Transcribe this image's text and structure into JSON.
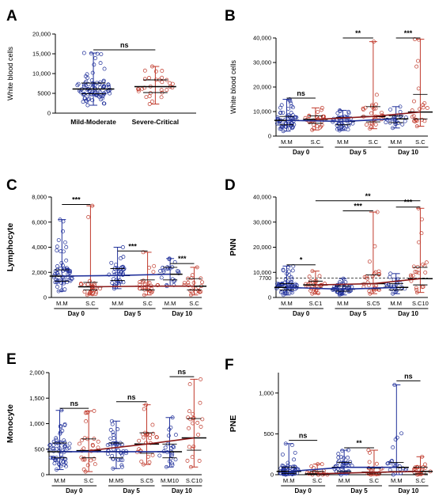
{
  "colors": {
    "mild_moderate": "#1f2f9a",
    "severe_critical": "#c0392b",
    "trend_severe": "#8b1a1a",
    "reference_line": "#333333"
  },
  "chart_data": [
    {
      "id": "A",
      "panel_label": "A",
      "type": "scatter",
      "ylabel": "White blood cells",
      "ylim": [
        0,
        20000
      ],
      "yticks": [
        0,
        5000,
        10000,
        15000,
        20000
      ],
      "ytick_labels": [
        "0",
        "5000",
        "10,000",
        "15,000",
        "20,000"
      ],
      "groups": [
        {
          "label": "Mild-Moderate",
          "color": "#1f2f9a",
          "n": 90,
          "median": 6100,
          "q1": 4900,
          "q3": 7600,
          "min": 2000,
          "max": 15200
        },
        {
          "label": "Severe-Critical",
          "color": "#c0392b",
          "n": 30,
          "median": 6700,
          "q1": 5200,
          "q3": 8400,
          "min": 2300,
          "max": 11800
        }
      ],
      "comparisons": [
        {
          "from": 0,
          "to": 1,
          "label": "ns",
          "y": 16000
        }
      ]
    },
    {
      "id": "B",
      "panel_label": "B",
      "type": "scatter",
      "ylabel": "White blood cells",
      "ylim": [
        0,
        40000
      ],
      "yticks": [
        0,
        10000,
        20000,
        30000,
        40000
      ],
      "ytick_labels": [
        "0",
        "10,000",
        "20,000",
        "30,000",
        "40,000"
      ],
      "days": [
        "Day 0",
        "Day 5",
        "Day 10"
      ],
      "groups": [
        {
          "label": "M.M",
          "day": 0,
          "color": "#1f2f9a",
          "n": 60,
          "median": 6400,
          "q1": 4600,
          "q3": 8000,
          "min": 2000,
          "max": 15000
        },
        {
          "label": "S.C",
          "day": 0,
          "color": "#c0392b",
          "n": 28,
          "median": 6800,
          "q1": 5200,
          "q3": 8200,
          "min": 2500,
          "max": 11500
        },
        {
          "label": "M.M",
          "day": 1,
          "color": "#1f2f9a",
          "n": 40,
          "median": 6000,
          "q1": 4600,
          "q3": 7600,
          "min": 2300,
          "max": 10500
        },
        {
          "label": "S.C",
          "day": 1,
          "color": "#c0392b",
          "n": 26,
          "median": 8000,
          "q1": 5800,
          "q3": 12000,
          "min": 3000,
          "max": 38500
        },
        {
          "label": "M.M",
          "day": 2,
          "color": "#1f2f9a",
          "n": 22,
          "median": 7000,
          "q1": 5500,
          "q3": 8200,
          "min": 3300,
          "max": 12000
        },
        {
          "label": "S.C",
          "day": 2,
          "color": "#c0392b",
          "n": 22,
          "median": 9800,
          "q1": 7000,
          "q3": 17000,
          "min": 4000,
          "max": 39500
        }
      ],
      "trend": {
        "mild_moderate": [
          6400,
          6000,
          7000
        ],
        "severe_critical": [
          6800,
          8000,
          9800
        ]
      },
      "comparisons": [
        {
          "from": 0,
          "to": 1,
          "label": "ns",
          "y": 15500
        },
        {
          "from": 2,
          "to": 3,
          "label": "**",
          "y": 40000
        },
        {
          "from": 4,
          "to": 5,
          "label": "***",
          "y": 40000
        }
      ]
    },
    {
      "id": "C",
      "panel_label": "C",
      "type": "scatter",
      "ylabel": "Lymphocyte",
      "ylim": [
        0,
        8000
      ],
      "yticks": [
        0,
        2000,
        4000,
        6000,
        8000
      ],
      "ytick_labels": [
        "0",
        "2,000",
        "4,000",
        "6,000",
        "8,000"
      ],
      "days": [
        "Day 0",
        "Day 5",
        "Day 10"
      ],
      "groups": [
        {
          "label": "M.M",
          "day": 0,
          "color": "#1f2f9a",
          "n": 60,
          "median": 1700,
          "q1": 1300,
          "q3": 2200,
          "min": 500,
          "max": 6200
        },
        {
          "label": "S.C",
          "day": 0,
          "color": "#c0392b",
          "n": 28,
          "median": 850,
          "q1": 600,
          "q3": 1200,
          "min": 200,
          "max": 7300
        },
        {
          "label": "M.M",
          "day": 1,
          "color": "#1f2f9a",
          "n": 40,
          "median": 1750,
          "q1": 1350,
          "q3": 2300,
          "min": 700,
          "max": 4000
        },
        {
          "label": "S.C",
          "day": 1,
          "color": "#c0392b",
          "n": 26,
          "median": 900,
          "q1": 600,
          "q3": 1400,
          "min": 200,
          "max": 3600
        },
        {
          "label": "M.M",
          "day": 2,
          "color": "#1f2f9a",
          "n": 22,
          "median": 1850,
          "q1": 1400,
          "q3": 2400,
          "min": 900,
          "max": 3100
        },
        {
          "label": "S.C",
          "day": 2,
          "color": "#c0392b",
          "n": 22,
          "median": 900,
          "q1": 600,
          "q3": 1500,
          "min": 200,
          "max": 2400
        }
      ],
      "trend": {
        "mild_moderate": [
          1700,
          1750,
          1850
        ],
        "severe_critical": [
          850,
          900,
          900
        ]
      },
      "comparisons": [
        {
          "from": 0,
          "to": 1,
          "label": "***",
          "y": 7400
        },
        {
          "from": 2,
          "to": 3,
          "label": "***",
          "y": 3700
        },
        {
          "from": 4,
          "to": 5,
          "label": "***",
          "y": 2700
        }
      ]
    },
    {
      "id": "D",
      "panel_label": "D",
      "type": "scatter",
      "ylabel": "PNN",
      "ylim": [
        0,
        40000
      ],
      "yticks": [
        0,
        10000,
        20000,
        30000,
        40000
      ],
      "ytick_labels": [
        "0",
        "10,000",
        "20,000",
        "30,000",
        "40,000"
      ],
      "reference_line": {
        "value": 7700,
        "label": "7700"
      },
      "days": [
        "Day 0",
        "Day 5",
        "Day 10"
      ],
      "groups": [
        {
          "label": "M.M",
          "day": 0,
          "color": "#1f2f9a",
          "n": 60,
          "median": 4000,
          "q1": 3000,
          "q3": 5500,
          "min": 1000,
          "max": 12500
        },
        {
          "label": "S.C1",
          "day": 0,
          "color": "#c0392b",
          "n": 28,
          "median": 5000,
          "q1": 3800,
          "q3": 6500,
          "min": 1500,
          "max": 10500
        },
        {
          "label": "M.M",
          "day": 1,
          "color": "#1f2f9a",
          "n": 40,
          "median": 3300,
          "q1": 2500,
          "q3": 4500,
          "min": 1000,
          "max": 7500
        },
        {
          "label": "S.C5",
          "day": 1,
          "color": "#c0392b",
          "n": 26,
          "median": 5500,
          "q1": 3500,
          "q3": 9000,
          "min": 1500,
          "max": 34000
        },
        {
          "label": "M.M",
          "day": 2,
          "color": "#1f2f9a",
          "n": 22,
          "median": 4000,
          "q1": 3000,
          "q3": 5500,
          "min": 1500,
          "max": 9500
        },
        {
          "label": "S.C10",
          "day": 2,
          "color": "#c0392b",
          "n": 22,
          "median": 7500,
          "q1": 5000,
          "q3": 12000,
          "min": 2000,
          "max": 35500
        }
      ],
      "trend": {
        "mild_moderate": [
          4000,
          3300,
          4000
        ],
        "severe_critical": [
          5000,
          5500,
          7500
        ]
      },
      "comparisons": [
        {
          "from": 0,
          "to": 1,
          "label": "*",
          "y": 13000
        },
        {
          "from": 1,
          "to": 5,
          "label": "**",
          "y": 38500
        },
        {
          "from": 2,
          "to": 3,
          "label": "***",
          "y": 34500
        },
        {
          "from": 4,
          "to": 5,
          "label": "***",
          "y": 36000
        }
      ]
    },
    {
      "id": "E",
      "panel_label": "E",
      "type": "scatter",
      "ylabel": "Monocyte",
      "ylim": [
        0,
        2000
      ],
      "yticks": [
        0,
        500,
        1000,
        1500,
        2000
      ],
      "ytick_labels": [
        "0",
        "500",
        "1,000",
        "1,500",
        "2,000"
      ],
      "days": [
        "Day 0",
        "Day 5",
        "Day 10"
      ],
      "groups": [
        {
          "label": "M.M",
          "day": 0,
          "color": "#1f2f9a",
          "n": 60,
          "median": 450,
          "q1": 330,
          "q3": 620,
          "min": 100,
          "max": 1260
        },
        {
          "label": "S.C",
          "day": 0,
          "color": "#c0392b",
          "n": 28,
          "median": 470,
          "q1": 330,
          "q3": 700,
          "min": 60,
          "max": 1250
        },
        {
          "label": "M.M5",
          "day": 1,
          "color": "#1f2f9a",
          "n": 40,
          "median": 450,
          "q1": 330,
          "q3": 620,
          "min": 120,
          "max": 1050
        },
        {
          "label": "S.C5",
          "day": 1,
          "color": "#c0392b",
          "n": 26,
          "median": 600,
          "q1": 420,
          "q3": 820,
          "min": 200,
          "max": 1370
        },
        {
          "label": "M.M10",
          "day": 2,
          "color": "#1f2f9a",
          "n": 22,
          "median": 450,
          "q1": 330,
          "q3": 600,
          "min": 150,
          "max": 1120
        },
        {
          "label": "S.C10",
          "day": 2,
          "color": "#c0392b",
          "n": 22,
          "median": 720,
          "q1": 480,
          "q3": 1100,
          "min": 150,
          "max": 1870
        }
      ],
      "trend": {
        "mild_moderate": [
          450,
          450,
          450
        ],
        "severe_critical": [
          470,
          600,
          720
        ]
      },
      "comparisons": [
        {
          "from": 0,
          "to": 1,
          "label": "ns",
          "y": 1300
        },
        {
          "from": 2,
          "to": 3,
          "label": "ns",
          "y": 1430
        },
        {
          "from": 4,
          "to": 5,
          "label": "ns",
          "y": 1920
        }
      ]
    },
    {
      "id": "F",
      "panel_label": "F",
      "type": "scatter",
      "ylabel": "PNE",
      "ylim": [
        0,
        1250
      ],
      "yticks": [
        0,
        500,
        1000
      ],
      "ytick_labels": [
        "0",
        "500",
        "1,000"
      ],
      "days": [
        "Day 0",
        "Day 5",
        "Day 10"
      ],
      "groups": [
        {
          "label": "M.M",
          "day": 0,
          "color": "#1f2f9a",
          "n": 60,
          "median": 40,
          "q1": 15,
          "q3": 90,
          "min": 0,
          "max": 380
        },
        {
          "label": "S.C",
          "day": 0,
          "color": "#c0392b",
          "n": 20,
          "median": 10,
          "q1": 0,
          "q3": 40,
          "min": 0,
          "max": 130
        },
        {
          "label": "M.M",
          "day": 1,
          "color": "#1f2f9a",
          "n": 40,
          "median": 90,
          "q1": 40,
          "q3": 150,
          "min": 0,
          "max": 300
        },
        {
          "label": "S.C",
          "day": 1,
          "color": "#c0392b",
          "n": 22,
          "median": 30,
          "q1": 10,
          "q3": 80,
          "min": 0,
          "max": 300
        },
        {
          "label": "M.M",
          "day": 2,
          "color": "#1f2f9a",
          "n": 22,
          "median": 90,
          "q1": 40,
          "q3": 150,
          "min": 0,
          "max": 1100
        },
        {
          "label": "S.C",
          "day": 2,
          "color": "#c0392b",
          "n": 20,
          "median": 40,
          "q1": 10,
          "q3": 90,
          "min": 0,
          "max": 220
        }
      ],
      "trend": {
        "mild_moderate": [
          40,
          90,
          90
        ],
        "severe_critical": [
          10,
          30,
          40
        ]
      },
      "comparisons": [
        {
          "from": 0,
          "to": 1,
          "label": "ns",
          "y": 420
        },
        {
          "from": 2,
          "to": 3,
          "label": "**",
          "y": 330
        },
        {
          "from": 4,
          "to": 5,
          "label": "ns",
          "y": 1150
        }
      ]
    }
  ]
}
